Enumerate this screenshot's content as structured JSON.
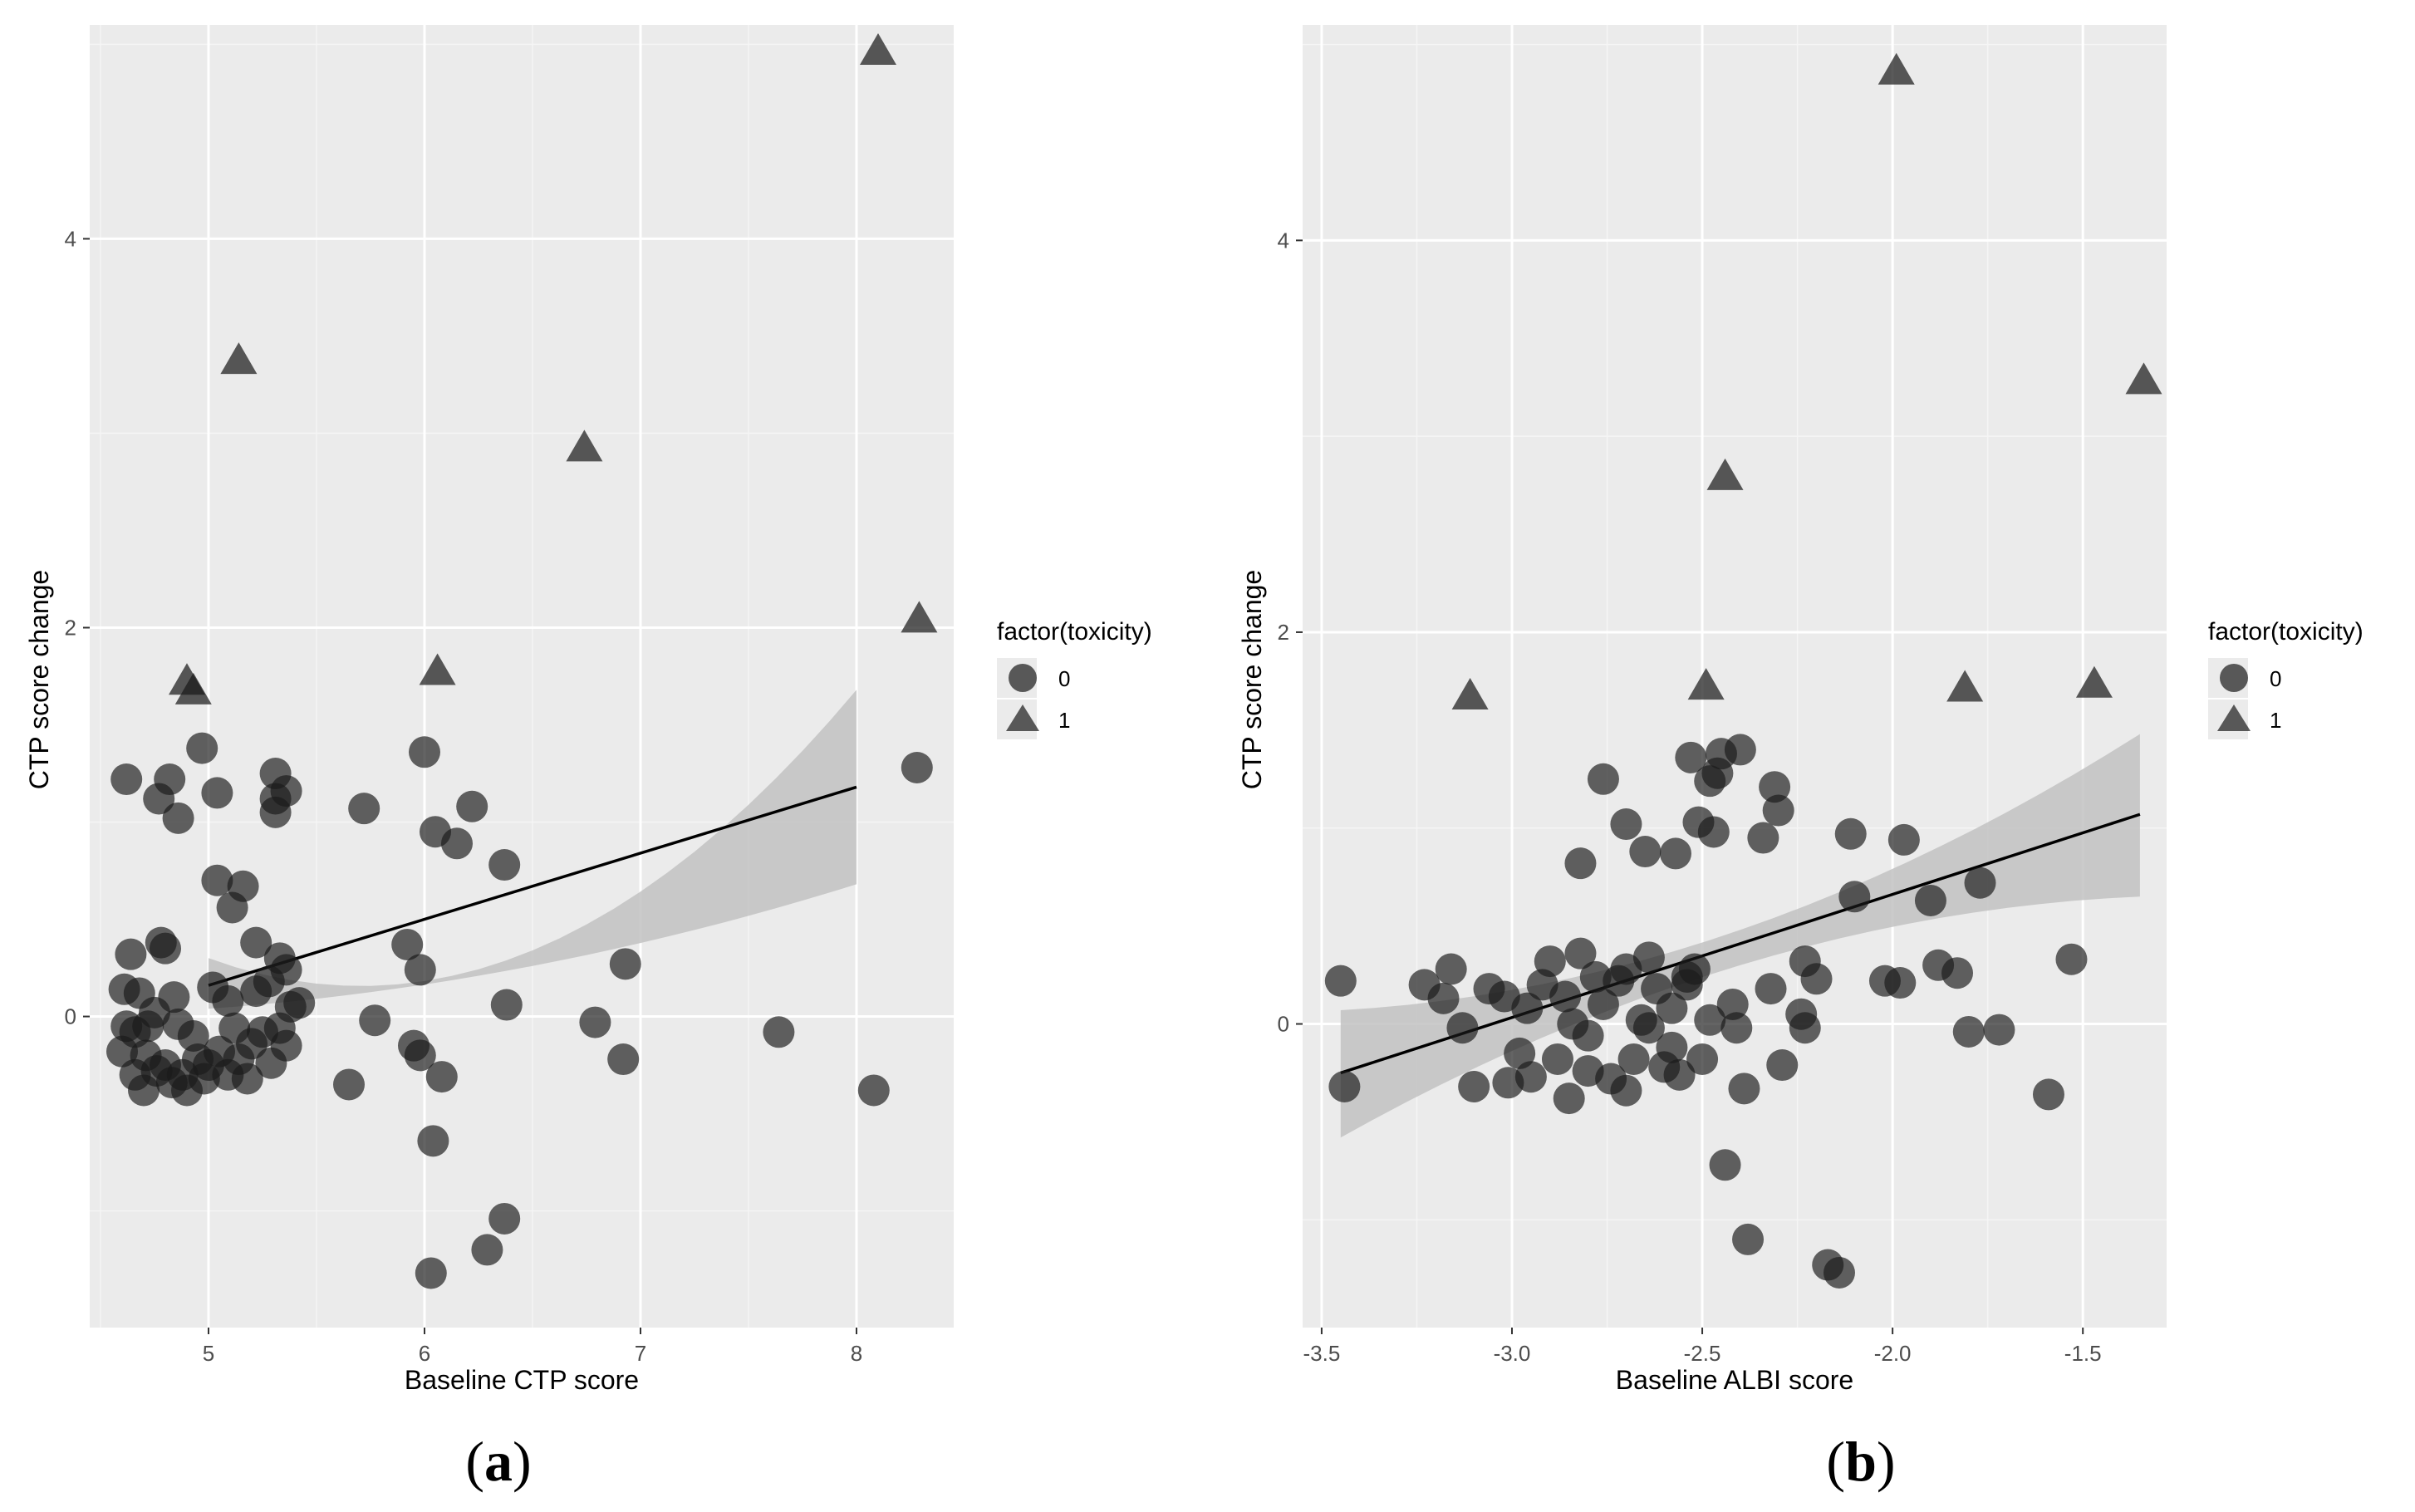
{
  "colors": {
    "panel_bg": "#ebebeb",
    "grid_major": "#ffffff",
    "grid_minor": "#f5f5f5",
    "point": "#1a1a1a",
    "ribbon": "#c2c2c2",
    "line": "#000000",
    "legend_key_bg": "#ebebeb"
  },
  "chart_data": [
    {
      "type": "scatter",
      "panel_label": "a",
      "xlabel": "Baseline CTP score",
      "ylabel": "CTP score change",
      "xlim": [
        4.45,
        8.45
      ],
      "ylim": [
        -1.6,
        5.1
      ],
      "xticks": [
        5,
        6,
        7,
        8
      ],
      "xtick_labels": [
        "5",
        "6",
        "7",
        "8"
      ],
      "yticks": [
        0,
        2,
        4
      ],
      "ytick_labels": [
        "0",
        "2",
        "4"
      ],
      "legend": {
        "title": "factor(toxicity)",
        "entries": [
          {
            "label": "0",
            "shape": "circle"
          },
          {
            "label": "1",
            "shape": "triangle"
          }
        ],
        "placement": "right"
      },
      "regression": {
        "x": [
          5.0,
          8.0
        ],
        "y": [
          0.16,
          1.18
        ],
        "ci_lower_at_ends": [
          0.04,
          0.68
        ],
        "ci_upper_at_ends": [
          0.3,
          1.68
        ],
        "ci_lower_at_mid": 0.26,
        "ci_upper_at_mid": 0.34
      },
      "series": [
        {
          "name": "0",
          "shape": "circle",
          "points": [
            [
              4.62,
              1.22
            ],
            [
              4.82,
              1.22
            ],
            [
              4.77,
              1.12
            ],
            [
              4.86,
              1.02
            ],
            [
              4.97,
              1.38
            ],
            [
              5.04,
              1.15
            ],
            [
              5.11,
              0.56
            ],
            [
              5.04,
              0.7
            ],
            [
              5.16,
              0.67
            ],
            [
              5.31,
              1.25
            ],
            [
              5.31,
              1.12
            ],
            [
              5.36,
              1.16
            ],
            [
              5.31,
              1.05
            ],
            [
              5.22,
              0.38
            ],
            [
              5.33,
              0.3
            ],
            [
              5.36,
              0.24
            ],
            [
              5.02,
              0.15
            ],
            [
              5.09,
              0.08
            ],
            [
              4.64,
              0.32
            ],
            [
              4.78,
              0.38
            ],
            [
              4.8,
              0.35
            ],
            [
              4.61,
              0.14
            ],
            [
              4.68,
              0.12
            ],
            [
              4.84,
              0.1
            ],
            [
              4.62,
              -0.05
            ],
            [
              4.66,
              -0.08
            ],
            [
              4.71,
              -0.2
            ],
            [
              4.76,
              -0.28
            ],
            [
              4.8,
              -0.25
            ],
            [
              4.83,
              -0.34
            ],
            [
              4.88,
              -0.3
            ],
            [
              4.7,
              -0.38
            ],
            [
              4.66,
              -0.3
            ],
            [
              4.75,
              0.02
            ],
            [
              4.86,
              -0.04
            ],
            [
              4.93,
              -0.1
            ],
            [
              5.0,
              -0.25
            ],
            [
              5.05,
              -0.18
            ],
            [
              5.09,
              -0.3
            ],
            [
              5.14,
              -0.22
            ],
            [
              5.2,
              -0.14
            ],
            [
              5.25,
              -0.08
            ],
            [
              5.29,
              -0.24
            ],
            [
              5.33,
              -0.06
            ],
            [
              5.36,
              -0.15
            ],
            [
              5.38,
              0.05
            ],
            [
              5.22,
              0.13
            ],
            [
              5.28,
              0.18
            ],
            [
              4.98,
              -0.32
            ],
            [
              4.95,
              -0.22
            ],
            [
              5.18,
              -0.32
            ],
            [
              4.9,
              -0.38
            ],
            [
              4.72,
              -0.05
            ],
            [
              4.6,
              -0.18
            ],
            [
              5.12,
              -0.06
            ],
            [
              5.42,
              0.07
            ],
            [
              5.65,
              -0.35
            ],
            [
              5.72,
              1.07
            ],
            [
              5.77,
              -0.02
            ],
            [
              5.92,
              0.37
            ],
            [
              5.95,
              -0.15
            ],
            [
              5.98,
              -0.2
            ],
            [
              5.98,
              0.24
            ],
            [
              6.0,
              1.36
            ],
            [
              6.05,
              0.95
            ],
            [
              6.15,
              0.89
            ],
            [
              6.22,
              1.08
            ],
            [
              6.04,
              -0.64
            ],
            [
              6.08,
              -0.31
            ],
            [
              6.03,
              -1.32
            ],
            [
              6.37,
              0.78
            ],
            [
              6.38,
              0.06
            ],
            [
              6.37,
              -1.04
            ],
            [
              6.29,
              -1.2
            ],
            [
              6.79,
              -0.03
            ],
            [
              6.93,
              0.27
            ],
            [
              6.92,
              -0.22
            ],
            [
              7.64,
              -0.08
            ],
            [
              8.08,
              -0.38
            ],
            [
              8.28,
              1.28
            ]
          ]
        },
        {
          "name": "1",
          "shape": "triangle",
          "points": [
            [
              5.14,
              3.37
            ],
            [
              4.9,
              1.72
            ],
            [
              4.93,
              1.67
            ],
            [
              6.06,
              1.77
            ],
            [
              6.74,
              2.92
            ],
            [
              8.1,
              4.96
            ],
            [
              8.29,
              2.04
            ]
          ]
        }
      ]
    },
    {
      "type": "scatter",
      "panel_label": "b",
      "xlabel": "Baseline ALBI score",
      "ylabel": "CTP score change",
      "xlim": [
        -3.55,
        -1.28
      ],
      "ylim": [
        -1.55,
        5.1
      ],
      "xticks": [
        -3.5,
        -3.0,
        -2.5,
        -2.0,
        -1.5
      ],
      "xtick_labels": [
        "-3.5",
        "-3.0",
        "-2.5",
        "-2.0",
        "-1.5"
      ],
      "yticks": [
        0,
        2,
        4
      ],
      "ytick_labels": [
        "0",
        "2",
        "4"
      ],
      "legend": {
        "title": "factor(toxicity)",
        "entries": [
          {
            "label": "0",
            "shape": "circle"
          },
          {
            "label": "1",
            "shape": "triangle"
          }
        ],
        "placement": "right"
      },
      "regression": {
        "x": [
          -3.45,
          -1.35
        ],
        "y": [
          -0.25,
          1.07
        ],
        "ci_lower_at_ends": [
          -0.58,
          0.65
        ],
        "ci_upper_at_ends": [
          0.07,
          1.48
        ],
        "ci_lower_at_mid": 0.3,
        "ci_upper_at_mid": 0.48
      },
      "series": [
        {
          "name": "0",
          "shape": "circle",
          "points": [
            [
              -3.45,
              0.22
            ],
            [
              -3.44,
              -0.32
            ],
            [
              -3.23,
              0.2
            ],
            [
              -3.16,
              0.28
            ],
            [
              -3.13,
              -0.02
            ],
            [
              -3.18,
              0.13
            ],
            [
              -3.1,
              -0.32
            ],
            [
              -3.06,
              0.18
            ],
            [
              -3.02,
              0.14
            ],
            [
              -3.01,
              -0.3
            ],
            [
              -2.98,
              -0.15
            ],
            [
              -2.95,
              -0.27
            ],
            [
              -2.92,
              0.2
            ],
            [
              -2.88,
              -0.18
            ],
            [
              -2.85,
              -0.38
            ],
            [
              -2.84,
              0.0
            ],
            [
              -2.82,
              0.36
            ],
            [
              -2.8,
              -0.06
            ],
            [
              -2.78,
              0.24
            ],
            [
              -2.76,
              0.1
            ],
            [
              -2.74,
              -0.28
            ],
            [
              -2.72,
              0.22
            ],
            [
              -2.7,
              0.28
            ],
            [
              -2.68,
              -0.18
            ],
            [
              -2.66,
              0.02
            ],
            [
              -2.64,
              0.34
            ],
            [
              -2.62,
              0.18
            ],
            [
              -2.6,
              -0.22
            ],
            [
              -2.58,
              0.08
            ],
            [
              -2.56,
              -0.26
            ],
            [
              -2.54,
              0.2
            ],
            [
              -2.52,
              0.28
            ],
            [
              -2.5,
              -0.18
            ],
            [
              -2.48,
              0.02
            ],
            [
              -2.9,
              0.32
            ],
            [
              -2.96,
              0.08
            ],
            [
              -2.86,
              0.14
            ],
            [
              -2.8,
              -0.24
            ],
            [
              -2.7,
              -0.34
            ],
            [
              -2.64,
              -0.02
            ],
            [
              -2.58,
              -0.12
            ],
            [
              -2.54,
              0.24
            ],
            [
              -2.82,
              0.82
            ],
            [
              -2.76,
              1.25
            ],
            [
              -2.7,
              1.02
            ],
            [
              -2.65,
              0.88
            ],
            [
              -2.57,
              0.87
            ],
            [
              -2.53,
              1.36
            ],
            [
              -2.51,
              1.03
            ],
            [
              -2.48,
              1.24
            ],
            [
              -2.46,
              1.28
            ],
            [
              -2.45,
              1.38
            ],
            [
              -2.47,
              0.98
            ],
            [
              -2.4,
              1.4
            ],
            [
              -2.34,
              0.95
            ],
            [
              -2.31,
              1.21
            ],
            [
              -2.3,
              1.09
            ],
            [
              -2.42,
              0.1
            ],
            [
              -2.41,
              -0.02
            ],
            [
              -2.39,
              -0.33
            ],
            [
              -2.44,
              -0.72
            ],
            [
              -2.38,
              -1.1
            ],
            [
              -2.32,
              0.18
            ],
            [
              -2.29,
              -0.21
            ],
            [
              -2.24,
              0.05
            ],
            [
              -2.23,
              -0.02
            ],
            [
              -2.23,
              0.32
            ],
            [
              -2.2,
              0.23
            ],
            [
              -2.17,
              -1.23
            ],
            [
              -2.14,
              -1.27
            ],
            [
              -2.11,
              0.97
            ],
            [
              -2.1,
              0.65
            ],
            [
              -2.02,
              0.22
            ],
            [
              -1.98,
              0.21
            ],
            [
              -1.97,
              0.94
            ],
            [
              -1.9,
              0.63
            ],
            [
              -1.88,
              0.3
            ],
            [
              -1.83,
              0.26
            ],
            [
              -1.8,
              -0.04
            ],
            [
              -1.77,
              0.72
            ],
            [
              -1.72,
              -0.03
            ],
            [
              -1.59,
              -0.36
            ],
            [
              -1.53,
              0.33
            ]
          ]
        },
        {
          "name": "1",
          "shape": "triangle",
          "points": [
            [
              -3.11,
              1.67
            ],
            [
              -2.49,
              1.72
            ],
            [
              -2.44,
              2.79
            ],
            [
              -1.99,
              4.86
            ],
            [
              -1.81,
              1.71
            ],
            [
              -1.47,
              1.73
            ],
            [
              -1.34,
              3.28
            ]
          ]
        }
      ]
    }
  ]
}
